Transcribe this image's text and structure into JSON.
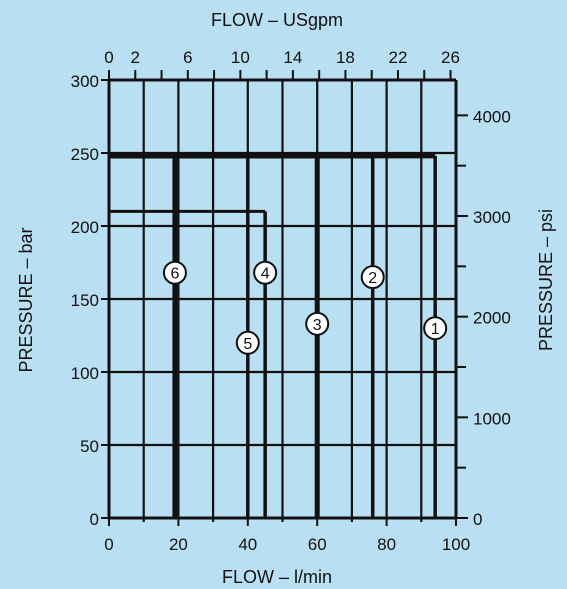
{
  "chart_data": {
    "type": "line",
    "title": "",
    "xlabel_bottom": "FLOW – l/min",
    "xlabel_top": "FLOW – USgpm",
    "ylabel_left": "PRESSURE – bar",
    "ylabel_right": "PRESSURE – psi",
    "xlim": [
      0,
      100
    ],
    "ylim": [
      0,
      300
    ],
    "x_ticks_bottom": [
      "0",
      "20",
      "40",
      "60",
      "80",
      "100"
    ],
    "x_ticks_top": [
      "0",
      "2",
      "6",
      "10",
      "14",
      "18",
      "22",
      "26"
    ],
    "y_ticks_left": [
      "0",
      "50",
      "100",
      "150",
      "200",
      "250",
      "300"
    ],
    "y_ticks_right": [
      "0",
      "1000",
      "2000",
      "3000",
      "4000"
    ],
    "grid": true,
    "series": [
      {
        "name": "1",
        "max_flow_lpm": 94,
        "max_pressure_bar": 248
      },
      {
        "name": "2",
        "max_flow_lpm": 76,
        "max_pressure_bar": 248
      },
      {
        "name": "3",
        "max_flow_lpm": 60,
        "max_pressure_bar": 248
      },
      {
        "name": "4",
        "max_flow_lpm": 45,
        "max_pressure_bar": 210
      },
      {
        "name": "5",
        "max_flow_lpm": 40,
        "max_pressure_bar": 248
      },
      {
        "name": "6",
        "max_flow_lpm": 19,
        "max_pressure_bar": 248
      }
    ]
  }
}
